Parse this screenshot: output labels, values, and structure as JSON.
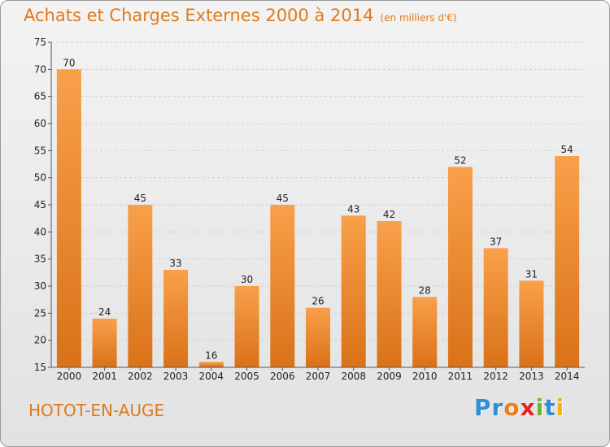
{
  "title": "Achats et Charges Externes 2000 à 2014",
  "unit_label": "(en milliers d'€)",
  "place_name": "HOTOT-EN-AUGE",
  "logo": {
    "letters": [
      {
        "char": "P",
        "color": "#2e8fd6"
      },
      {
        "char": "r",
        "color": "#2e8fd6"
      },
      {
        "char": "o",
        "color": "#f07d1a"
      },
      {
        "char": "x",
        "color": "#e52420"
      },
      {
        "char": "i",
        "color": "#69b52d"
      },
      {
        "char": "t",
        "color": "#2e8fd6"
      },
      {
        "char": "i",
        "color": "#f3b21a"
      }
    ]
  },
  "chart_data": {
    "type": "bar",
    "title": "Achats et Charges Externes 2000 à 2014",
    "subtitle": "(en milliers d'€)",
    "categories": [
      "2000",
      "2001",
      "2002",
      "2003",
      "2004",
      "2005",
      "2006",
      "2007",
      "2008",
      "2009",
      "2010",
      "2011",
      "2012",
      "2013",
      "2014"
    ],
    "values": [
      70,
      24,
      45,
      33,
      16,
      30,
      45,
      26,
      43,
      42,
      28,
      52,
      37,
      31,
      54
    ],
    "ylim": [
      15,
      75
    ],
    "yticks": [
      15,
      20,
      25,
      30,
      35,
      40,
      45,
      50,
      55,
      60,
      65,
      70,
      75
    ],
    "grid": true,
    "bar_color_top": "#f9a04a",
    "bar_color_bottom": "#d97218"
  }
}
